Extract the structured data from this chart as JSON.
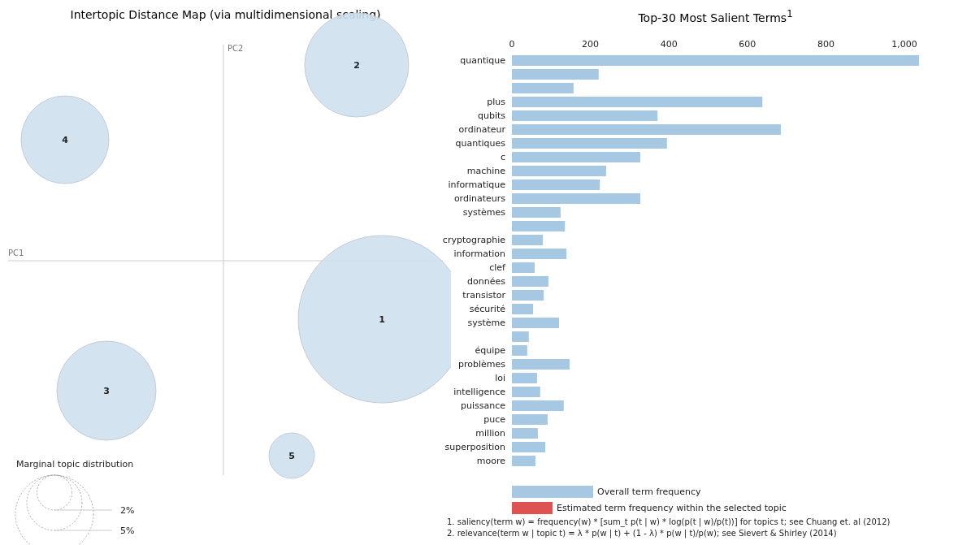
{
  "chart_data": [
    {
      "type": "other",
      "title": "Intertopic Distance Map (via multidimensional scaling)",
      "xlabel": "PC1",
      "ylabel": "PC2",
      "legend_title": "Marginal topic distribution",
      "annotations": [
        "1",
        "2",
        "3",
        "4",
        "5",
        "2%",
        "5%"
      ]
    },
    {
      "type": "bar",
      "orientation": "horizontal",
      "title": "Top-30 Most Salient Terms$^{1}$",
      "categories": [
        "quantique",
        null,
        null,
        "plus",
        "qubits",
        "ordinateur",
        "quantiques",
        "c",
        "machine",
        "informatique",
        "ordinateurs",
        "systèmes",
        null,
        "cryptographie",
        "information",
        "clef",
        "données",
        "transistor",
        "sécurité",
        "système",
        null,
        "équipe",
        "problèmes",
        "loi",
        "intelligence",
        "puissance",
        "puce",
        "million",
        "superposition",
        "moore"
      ],
      "xlim": [
        0,
        1037
      ],
      "xticks": [
        0,
        200,
        400,
        600,
        800,
        {
          "value": 1000,
          "label": "1,000"
        }
      ],
      "legend": "bottom",
      "series": [
        {
          "name": "Overall term frequency",
          "color": "#a6c8e2",
          "values": [
            1037,
            221,
            157,
            638,
            371,
            685,
            395,
            327,
            240,
            224,
            327,
            124,
            135,
            79,
            139,
            58,
            93,
            81,
            54,
            120,
            43,
            39,
            147,
            64,
            72,
            132,
            91,
            66,
            85,
            60
          ]
        },
        {
          "name": "Estimated term frequency within the selected topic",
          "color": "#df5252",
          "values": [
            null,
            null,
            null,
            null,
            null,
            null,
            null,
            null,
            null,
            null,
            null,
            null,
            null,
            null,
            null,
            null,
            null,
            null,
            null,
            null,
            null,
            null,
            null,
            null,
            null,
            null,
            null,
            null,
            null,
            null
          ]
        }
      ],
      "annotations": [
        "1. saliency(term w) = frequency(w) * [sum_t p(t | w) * log(p(t | w)/p(t))] for topics t; see Chuang et. al (2012)",
        "2. relevance(term w | topic t) = λ * p(w | t) + (1 - λ) * p(w | t)/p(w); see Sievert & Shirley (2014)"
      ]
    }
  ]
}
